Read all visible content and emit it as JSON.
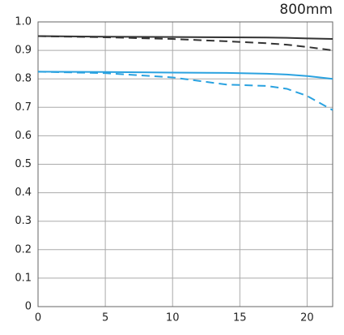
{
  "chart_data": {
    "type": "line",
    "title": "800mm",
    "x": [
      0,
      5,
      10,
      14,
      17,
      18.5,
      20,
      21.9
    ],
    "series": [
      {
        "color": "#333333",
        "dashed": false,
        "values": [
          0.95,
          0.948,
          0.947,
          0.946,
          0.945,
          0.944,
          0.942,
          0.94
        ]
      },
      {
        "color": "#333333",
        "dashed": true,
        "values": [
          0.95,
          0.946,
          0.94,
          0.932,
          0.925,
          0.92,
          0.912,
          0.9
        ]
      },
      {
        "color": "#2aa2e0",
        "dashed": false,
        "values": [
          0.825,
          0.824,
          0.822,
          0.821,
          0.818,
          0.815,
          0.81,
          0.8
        ]
      },
      {
        "color": "#2aa2e0",
        "dashed": true,
        "values": [
          0.825,
          0.82,
          0.805,
          0.78,
          0.775,
          0.765,
          0.74,
          0.69
        ]
      }
    ],
    "xlim": [
      0,
      21.9
    ],
    "xticks": [
      0,
      5,
      10,
      15,
      20
    ],
    "ylim": [
      0,
      1
    ],
    "yticks": [
      0,
      0.1,
      0.2,
      0.3,
      0.4,
      0.5,
      0.6,
      0.7,
      0.8,
      0.9,
      {
        "value": 1,
        "label": "1.0"
      }
    ],
    "grid": true
  }
}
